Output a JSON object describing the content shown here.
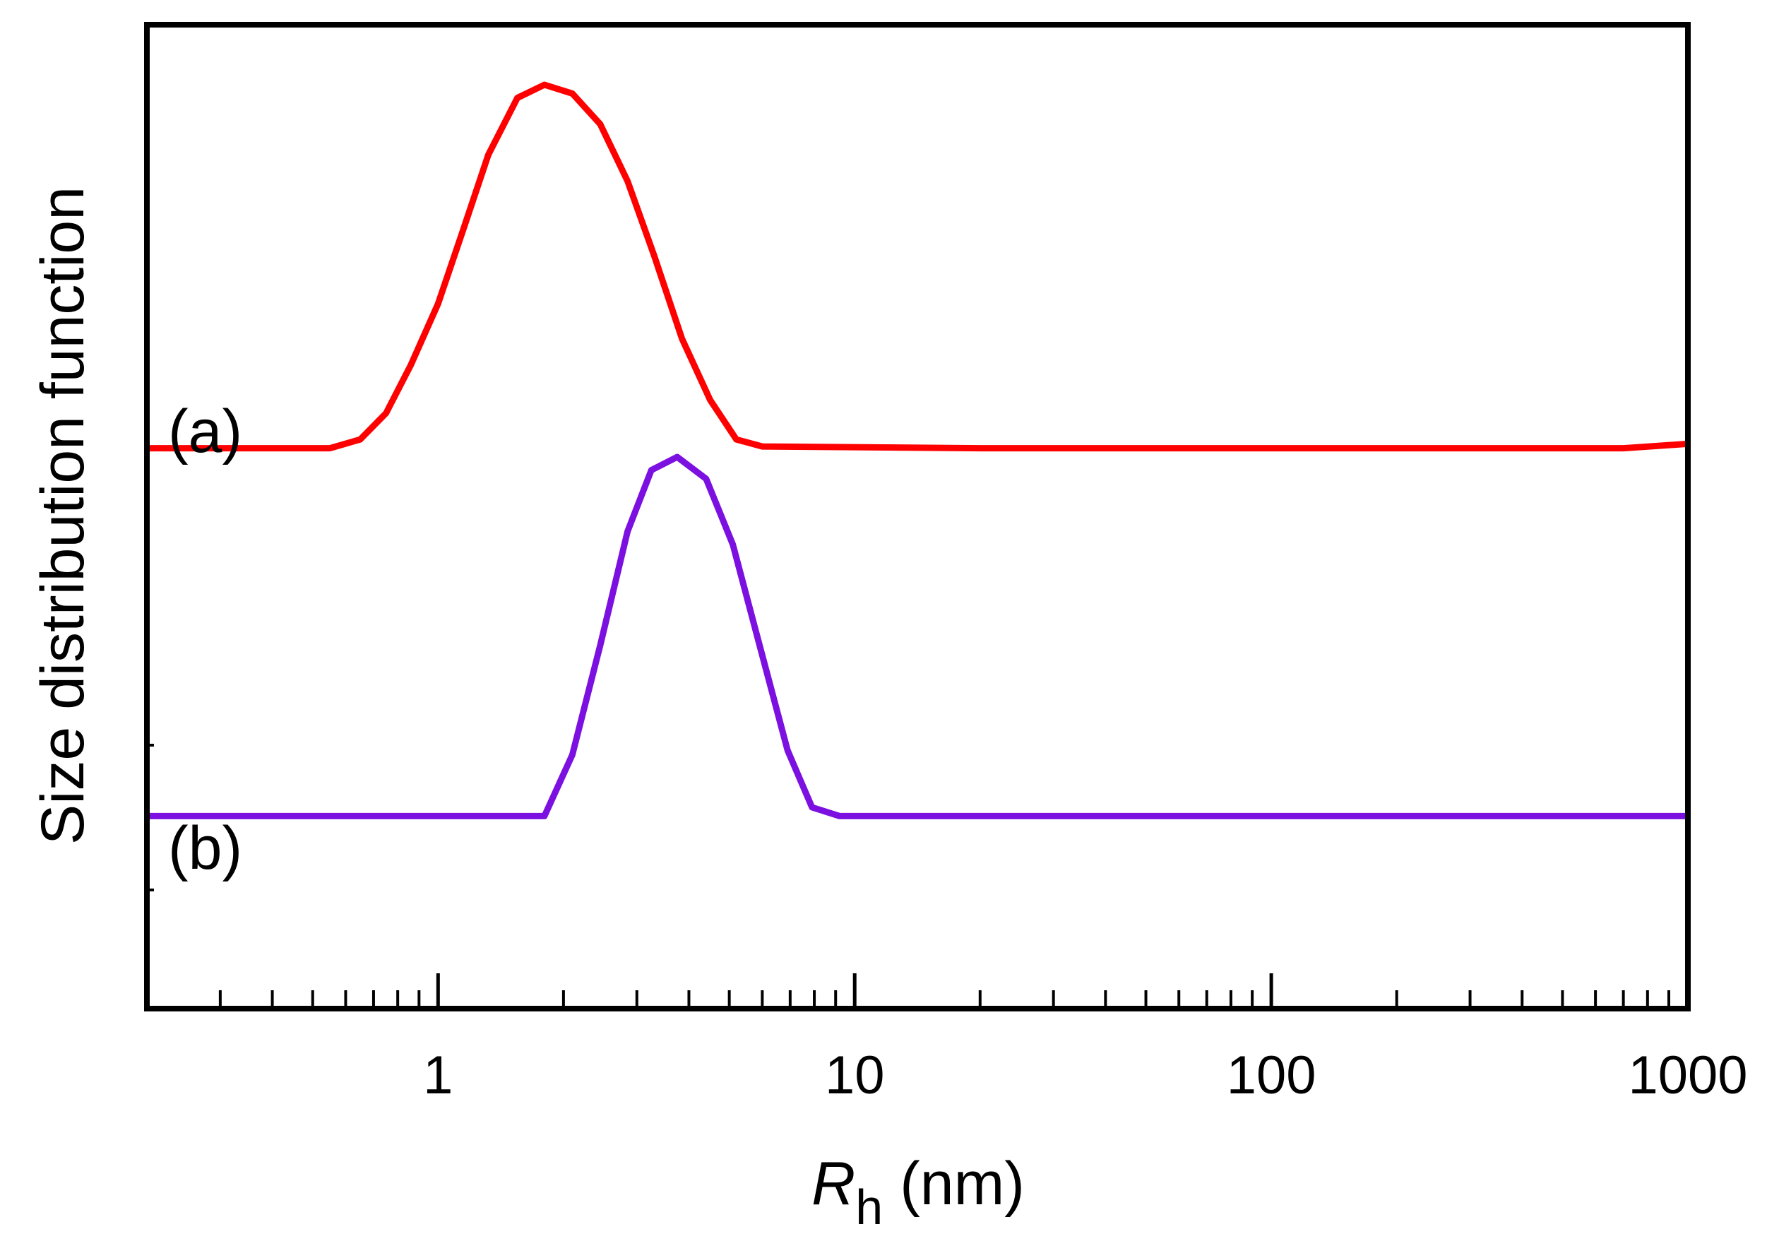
{
  "chart_data": {
    "type": "line",
    "title": "",
    "xlabel": "R",
    "xlabel_sub": "h",
    "xlabel_unit": " (nm)",
    "ylabel": "Size distribution function",
    "xscale": "log",
    "xlim": [
      0.2,
      1000
    ],
    "ylim": [
      0,
      1
    ],
    "xticks": [
      1,
      10,
      100,
      1000
    ],
    "xtick_labels": [
      "1",
      "10",
      "100",
      "1000"
    ],
    "grid": false,
    "series": [
      {
        "name": "(a)",
        "color": "#ff0000",
        "x": [
          0.2,
          0.55,
          0.65,
          0.75,
          0.86,
          1.0,
          1.15,
          1.32,
          1.55,
          1.8,
          2.1,
          2.45,
          2.85,
          3.3,
          3.85,
          4.5,
          5.2,
          6.0,
          20,
          100,
          300,
          700,
          1000
        ],
        "y": [
          0.585,
          0.585,
          0.595,
          0.625,
          0.68,
          0.75,
          0.835,
          0.92,
          0.985,
          1.0,
          0.99,
          0.955,
          0.89,
          0.805,
          0.71,
          0.64,
          0.595,
          0.587,
          0.585,
          0.585,
          0.585,
          0.585,
          0.59
        ]
      },
      {
        "name": "(b)",
        "color": "#7b10e0",
        "x": [
          0.2,
          1.8,
          2.1,
          2.45,
          2.85,
          3.25,
          3.75,
          4.4,
          5.1,
          5.95,
          6.9,
          7.9,
          9.2,
          20,
          100,
          1000
        ],
        "y": [
          0.165,
          0.165,
          0.235,
          0.36,
          0.49,
          0.56,
          0.575,
          0.55,
          0.475,
          0.355,
          0.24,
          0.175,
          0.165,
          0.165,
          0.165,
          0.165
        ]
      }
    ]
  }
}
